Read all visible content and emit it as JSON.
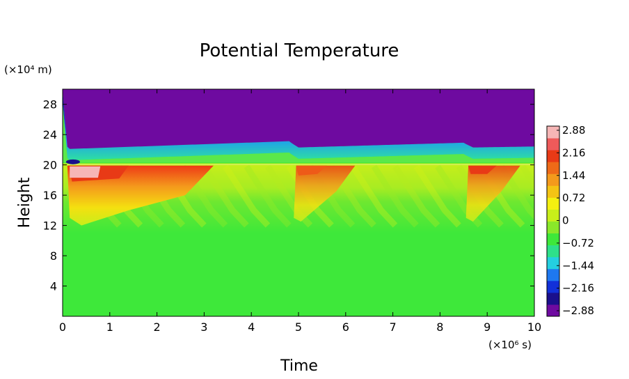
{
  "chart_data": {
    "type": "heatmap",
    "title": "Potential Temperature",
    "xlabel": "Time",
    "ylabel": "Height",
    "x_unit": "(×10⁶ s)",
    "y_unit": "(×10⁴ m)",
    "xlim": [
      0,
      10
    ],
    "ylim": [
      0,
      30
    ],
    "x_ticks": [
      "0",
      "1",
      "2",
      "3",
      "4",
      "5",
      "6",
      "7",
      "8",
      "9",
      "10"
    ],
    "y_ticks": [
      "4",
      "8",
      "12",
      "16",
      "20",
      "24",
      "28"
    ],
    "colorbar": {
      "range": [
        -2.88,
        2.88
      ],
      "ticks": [
        "2.88",
        "2.16",
        "1.44",
        "0.72",
        "0",
        "−0.72",
        "−1.44",
        "−2.16",
        "−2.88"
      ],
      "colors": [
        "#6e0aa0",
        "#1a0f8c",
        "#1230d8",
        "#1e78f0",
        "#24cfe0",
        "#2ee08a",
        "#3ee83a",
        "#8ae82a",
        "#c8ee1a",
        "#f4f010",
        "#f4c414",
        "#f49a1c",
        "#ee6a18",
        "#e83a16",
        "#ee5a5a",
        "#f6b6b6"
      ]
    },
    "field_levels": {
      "stratosphere": -2.88,
      "boundary": -1.8,
      "upper_troposphere": 0.5,
      "lower_troposphere": 0.1,
      "pulses": [
        {
          "time": 0.15,
          "peak": 2.88
        },
        {
          "time": 5.0,
          "peak": 1.9
        },
        {
          "time": 8.7,
          "peak": 2.0
        }
      ]
    }
  }
}
